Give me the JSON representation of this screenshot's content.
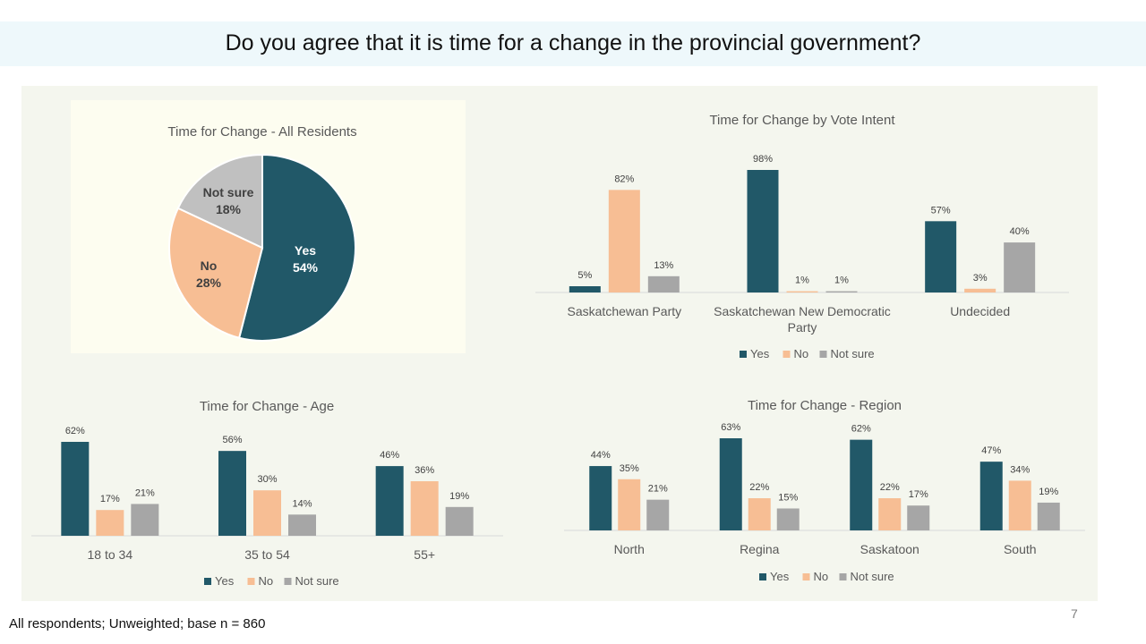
{
  "page": {
    "title": "Do you agree that it is time for a change in the provincial government?",
    "footnote": "All respondents; Unweighted; base n = 860",
    "page_number": "7"
  },
  "colors": {
    "yes": "#215868",
    "no": "#f7be94",
    "notsure": "#a6a6a6",
    "notsure_light": "#c0c0c0"
  },
  "chart_data": [
    {
      "id": "pie",
      "type": "pie",
      "title": "Time for Change - All Residents",
      "slices": [
        {
          "label": "Yes",
          "value": 54,
          "display": "54%"
        },
        {
          "label": "No",
          "value": 28,
          "display": "28%"
        },
        {
          "label": "Not sure",
          "value": 18,
          "display": "18%"
        }
      ]
    },
    {
      "id": "vote",
      "type": "bar",
      "title": "Time for Change by Vote Intent",
      "categories": [
        [
          "Saskatchewan Party"
        ],
        [
          "Saskatchewan New Democratic",
          "Party"
        ],
        [
          "Undecided"
        ]
      ],
      "series": [
        {
          "name": "Yes",
          "values": [
            5,
            98,
            57
          ]
        },
        {
          "name": "No",
          "values": [
            82,
            1,
            3
          ]
        },
        {
          "name": "Not sure",
          "values": [
            13,
            1,
            40
          ]
        }
      ],
      "legend": "bottom"
    },
    {
      "id": "age",
      "type": "bar",
      "title": "Time for Change - Age",
      "categories": [
        [
          "18 to 34"
        ],
        [
          "35 to 54"
        ],
        [
          "55+"
        ]
      ],
      "series": [
        {
          "name": "Yes",
          "values": [
            62,
            56,
            46
          ]
        },
        {
          "name": "No",
          "values": [
            17,
            30,
            36
          ]
        },
        {
          "name": "Not sure",
          "values": [
            21,
            14,
            19
          ]
        }
      ],
      "legend": "bottom"
    },
    {
      "id": "region",
      "type": "bar",
      "title": "Time for Change - Region",
      "categories": [
        [
          "North"
        ],
        [
          "Regina"
        ],
        [
          "Saskatoon"
        ],
        [
          "South"
        ]
      ],
      "series": [
        {
          "name": "Yes",
          "values": [
            44,
            63,
            62,
            47
          ]
        },
        {
          "name": "No",
          "values": [
            35,
            22,
            22,
            34
          ]
        },
        {
          "name": "Not sure",
          "values": [
            21,
            15,
            17,
            19
          ]
        }
      ],
      "legend": "bottom"
    }
  ]
}
